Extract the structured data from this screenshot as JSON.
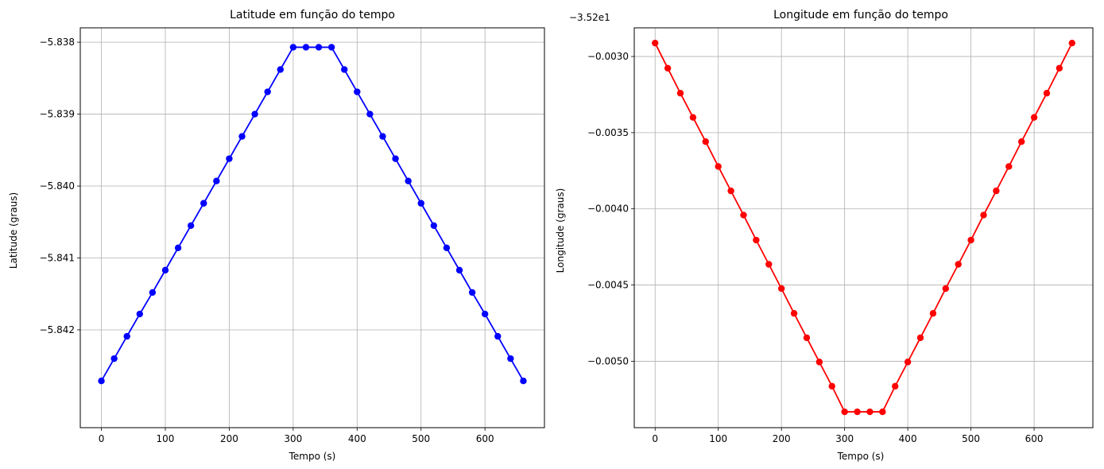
{
  "chart_data": [
    {
      "type": "line",
      "title": "Latitude em função do tempo",
      "xlabel": "Tempo (s)",
      "ylabel": "Latitude (graus)",
      "xlim": [
        -33,
        693
      ],
      "ylim": [
        -5.84336,
        -5.8378
      ],
      "xticks": [
        0,
        100,
        200,
        300,
        400,
        500,
        600
      ],
      "xtick_labels": [
        "0",
        "100",
        "200",
        "300",
        "400",
        "500",
        "600"
      ],
      "yticks": [
        -5.842,
        -5.841,
        -5.84,
        -5.839,
        -5.838
      ],
      "ytick_labels": [
        "−5.842",
        "−5.841",
        "−5.840",
        "−5.839",
        "−5.838"
      ],
      "offset_text": "",
      "grid": true,
      "color": "#0000ff",
      "marker": "circle",
      "x": [
        0,
        20,
        40,
        60,
        80,
        100,
        120,
        140,
        160,
        180,
        200,
        220,
        240,
        260,
        280,
        300,
        320,
        340,
        360,
        380,
        400,
        420,
        440,
        460,
        480,
        500,
        520,
        540,
        560,
        580,
        600,
        620,
        640,
        660
      ],
      "y": [
        -5.84271,
        -5.8424,
        -5.84209,
        -5.84178,
        -5.84148,
        -5.84117,
        -5.84086,
        -5.84055,
        -5.84024,
        -5.83993,
        -5.83962,
        -5.83931,
        -5.839,
        -5.83869,
        -5.83838,
        -5.83807,
        -5.83807,
        -5.83807,
        -5.83807,
        -5.83838,
        -5.83869,
        -5.839,
        -5.83931,
        -5.83962,
        -5.83993,
        -5.84024,
        -5.84055,
        -5.84086,
        -5.84117,
        -5.84148,
        -5.84178,
        -5.84209,
        -5.8424,
        -5.84271
      ]
    },
    {
      "type": "line",
      "title": "Longitude em função do tempo",
      "xlabel": "Tempo (s)",
      "ylabel": "Longitude (graus)",
      "xlim": [
        -33,
        693
      ],
      "ylim": [
        -0.005436,
        -0.002812
      ],
      "xticks": [
        0,
        100,
        200,
        300,
        400,
        500,
        600
      ],
      "xtick_labels": [
        "0",
        "100",
        "200",
        "300",
        "400",
        "500",
        "600"
      ],
      "yticks": [
        -0.005,
        -0.0045,
        -0.004,
        -0.0035,
        -0.003
      ],
      "ytick_labels": [
        "−0.0050",
        "−0.0045",
        "−0.0040",
        "−0.0035",
        "−0.0030"
      ],
      "offset_text": "−3.52e1",
      "grid": true,
      "color": "#ff0000",
      "marker": "circle",
      "x": [
        0,
        20,
        40,
        60,
        80,
        100,
        120,
        140,
        160,
        180,
        200,
        220,
        240,
        260,
        280,
        300,
        320,
        340,
        360,
        380,
        400,
        420,
        440,
        460,
        480,
        500,
        520,
        540,
        560,
        580,
        600,
        620,
        640,
        660
      ],
      "y": [
        -0.002912,
        -0.003077,
        -0.003241,
        -0.0034,
        -0.003559,
        -0.003722,
        -0.003882,
        -0.004041,
        -0.004205,
        -0.004364,
        -0.004523,
        -0.004686,
        -0.004846,
        -0.005005,
        -0.005164,
        -0.005332,
        -0.005332,
        -0.005332,
        -0.005332,
        -0.005164,
        -0.005005,
        -0.004846,
        -0.004686,
        -0.004523,
        -0.004364,
        -0.004205,
        -0.004041,
        -0.003882,
        -0.003722,
        -0.003559,
        -0.0034,
        -0.003241,
        -0.003077,
        -0.002912
      ]
    }
  ]
}
